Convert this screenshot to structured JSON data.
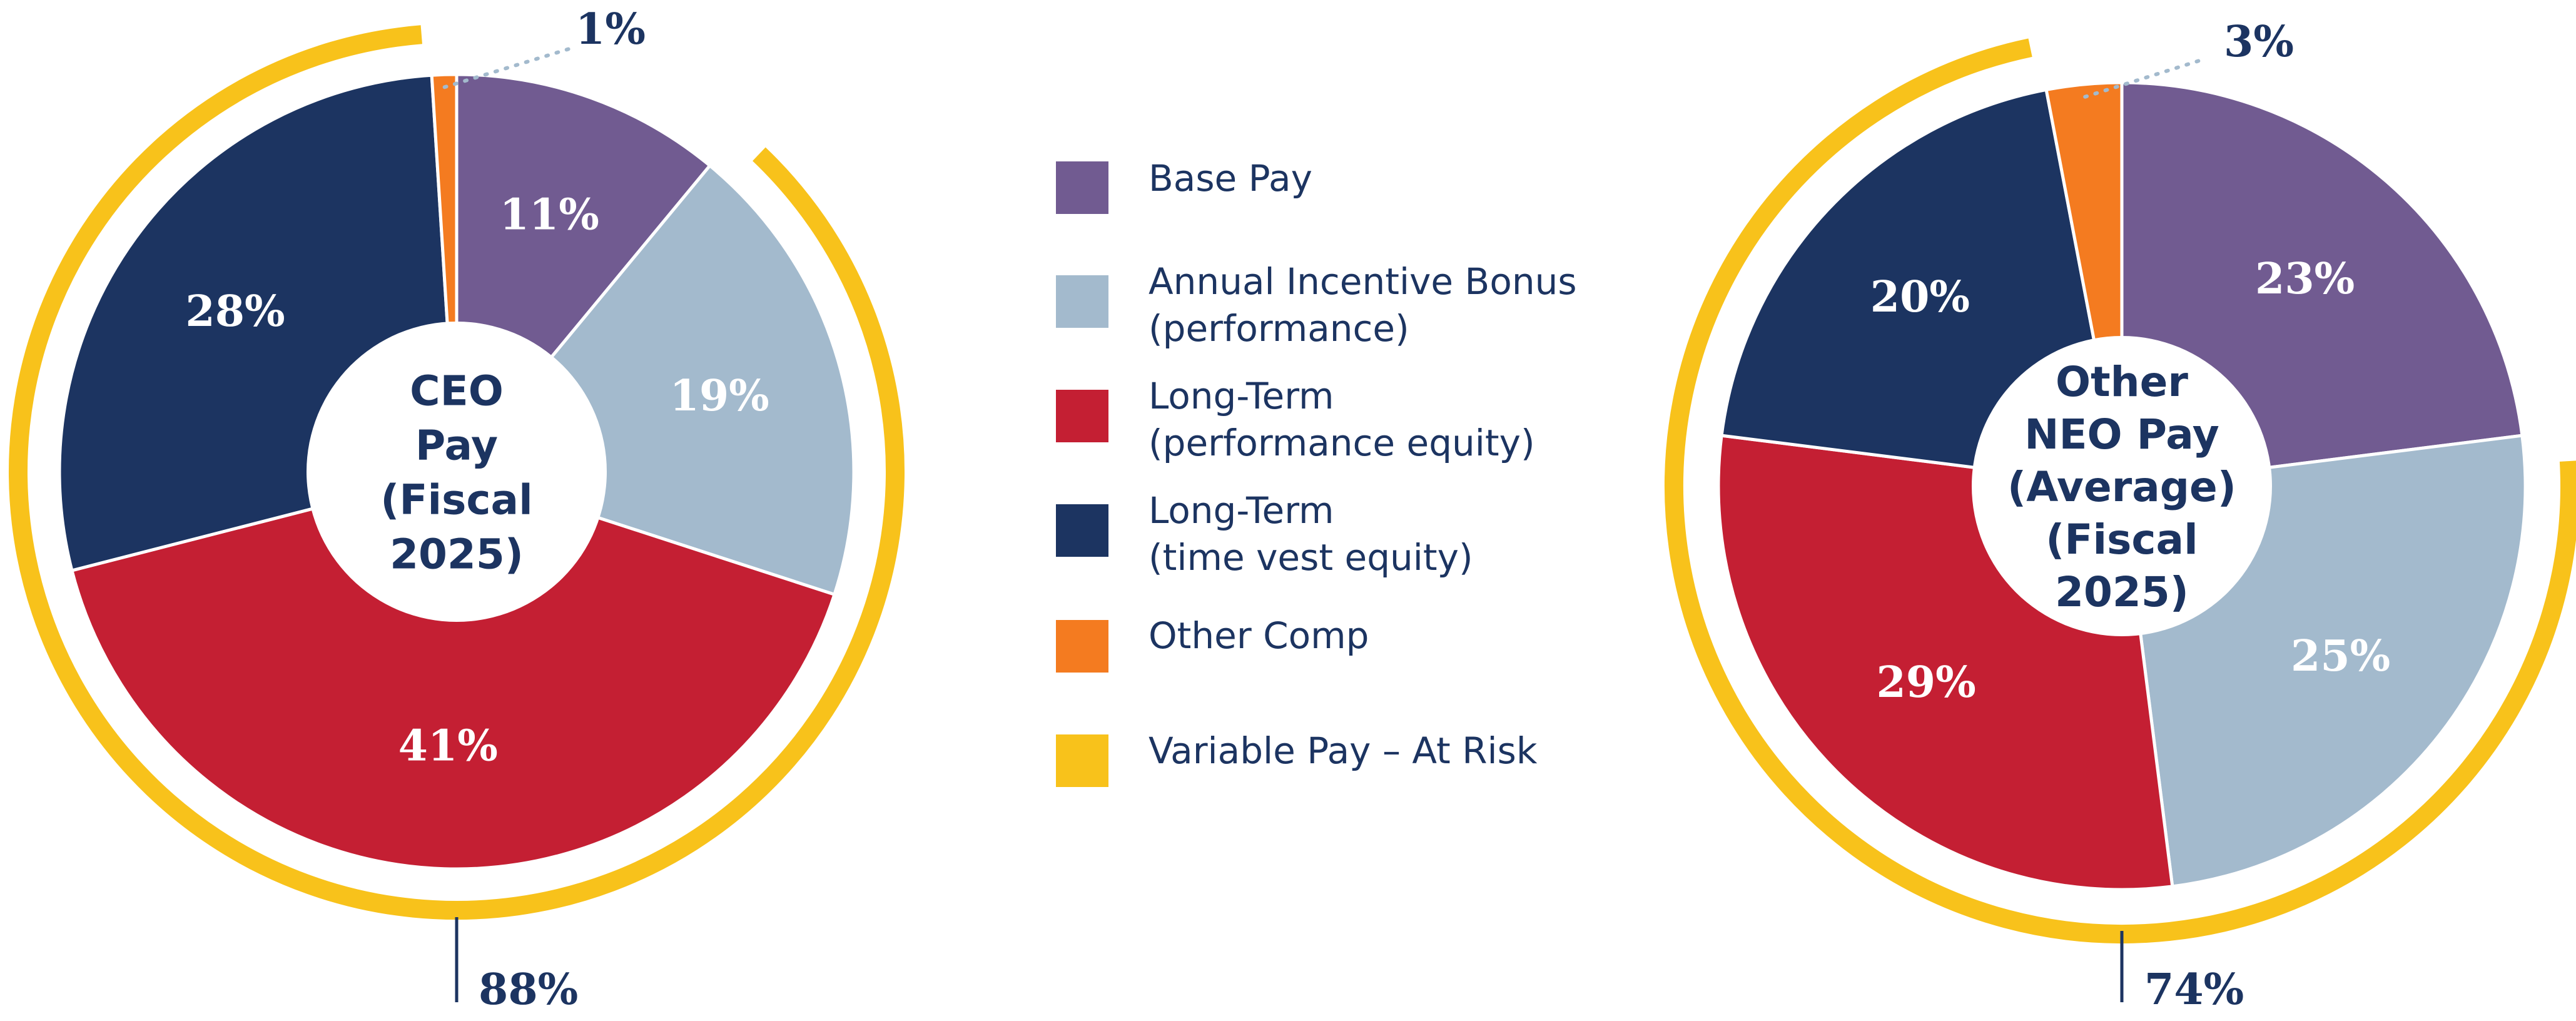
{
  "legend": [
    {
      "label_lines": [
        "Base Pay"
      ],
      "color": "#715b91"
    },
    {
      "label_lines": [
        "Annual Incentive Bonus",
        "(performance)"
      ],
      "color": "#a3bacd"
    },
    {
      "label_lines": [
        "Long-Term",
        "(performance equity)"
      ],
      "color": "#c41f33"
    },
    {
      "label_lines": [
        "Long-Term",
        "(time vest equity)"
      ],
      "color": "#1c3461"
    },
    {
      "label_lines": [
        "Other Comp"
      ],
      "color": "#f47b20"
    },
    {
      "label_lines": [
        "Variable Pay – At Risk"
      ],
      "color": "#f8c21b"
    }
  ],
  "chart_data": [
    {
      "type": "pie",
      "title_lines": [
        "CEO",
        "Pay",
        "(Fiscal",
        "2025)"
      ],
      "slices": [
        {
          "category": "Base Pay",
          "value": 11,
          "label": "11%",
          "color": "#715b91"
        },
        {
          "category": "Annual Incentive Bonus (performance)",
          "value": 19,
          "label": "19%",
          "color": "#a3bacd"
        },
        {
          "category": "Long-Term (performance equity)",
          "value": 41,
          "label": "41%",
          "color": "#c41f33"
        },
        {
          "category": "Long-Term (time vest equity)",
          "value": 28,
          "label": "28%",
          "color": "#1c3461"
        },
        {
          "category": "Other Comp",
          "value": 1,
          "label": "1%",
          "color": "#f47b20"
        }
      ],
      "variable_pay": {
        "value": 88,
        "label": "88%",
        "color": "#f8c21b"
      }
    },
    {
      "type": "pie",
      "title_lines": [
        "Other",
        "NEO Pay",
        "(Average)",
        "(Fiscal",
        "2025)"
      ],
      "slices": [
        {
          "category": "Base Pay",
          "value": 23,
          "label": "23%",
          "color": "#715b91"
        },
        {
          "category": "Annual Incentive Bonus (performance)",
          "value": 25,
          "label": "25%",
          "color": "#a3bacd"
        },
        {
          "category": "Long-Term (performance equity)",
          "value": 29,
          "label": "29%",
          "color": "#c41f33"
        },
        {
          "category": "Long-Term (time vest equity)",
          "value": 20,
          "label": "20%",
          "color": "#1c3461"
        },
        {
          "category": "Other Comp",
          "value": 3,
          "label": "3%",
          "color": "#f47b20"
        }
      ],
      "variable_pay": {
        "value": 74,
        "label": "74%",
        "color": "#f8c21b"
      }
    }
  ]
}
